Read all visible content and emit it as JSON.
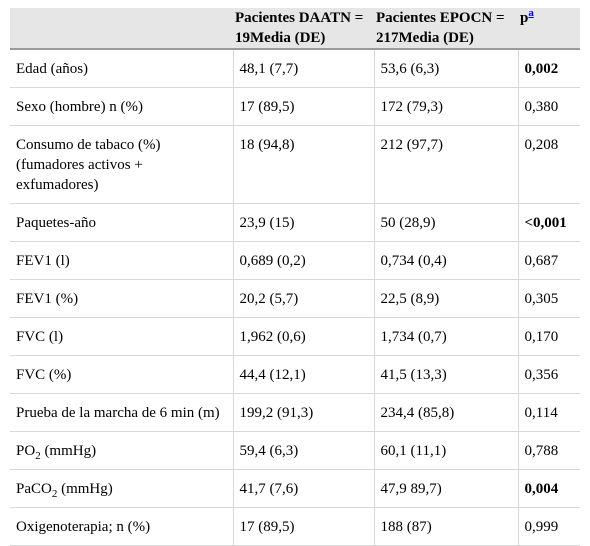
{
  "header": {
    "col0": "",
    "col1": "Pacientes DAATN = 19Media (DE)",
    "col2": "Pacientes EPOCN = 217Media (DE)",
    "col3": "p",
    "col3_sup": "a"
  },
  "rows": [
    {
      "label": "Edad (años)",
      "daatn": "48,1 (7,7)",
      "epoc": "53,6 (6,3)",
      "p": "0,002",
      "p_bold": true
    },
    {
      "label": "Sexo (hombre) n (%)",
      "daatn": "17 (89,5)",
      "epoc": "172 (79,3)",
      "p": "0,380",
      "p_bold": false
    },
    {
      "label": "Consumo de tabaco (%) (fumadores activos + exfumadores)",
      "daatn": "18 (94,8)",
      "epoc": "212 (97,7)",
      "p": "0,208",
      "p_bold": false
    },
    {
      "label": "Paquetes-año",
      "daatn": "23,9 (15)",
      "epoc": "50 (28,9)",
      "p": "<0,001",
      "p_bold": true
    },
    {
      "label": "FEV1 (l)",
      "daatn": "0,689 (0,2)",
      "epoc": "0,734 (0,4)",
      "p": "0,687",
      "p_bold": false
    },
    {
      "label": "FEV1 (%)",
      "daatn": "20,2 (5,7)",
      "epoc": "22,5 (8,9)",
      "p": "0,305",
      "p_bold": false
    },
    {
      "label": "FVC (l)",
      "daatn": "1,962 (0,6)",
      "epoc": "1,734 (0,7)",
      "p": "0,170",
      "p_bold": false
    },
    {
      "label": "FVC (%)",
      "daatn": "44,4 (12,1)",
      "epoc": "41,5 (13,3)",
      "p": "0,356",
      "p_bold": false
    },
    {
      "label": "Prueba de la marcha de 6 min (m)",
      "daatn": "199,2 (91,3)",
      "epoc": "234,4 (85,8)",
      "p": "0,114",
      "p_bold": false
    },
    {
      "label": "PO",
      "label_sub": "2",
      "label_suffix": " (mmHg)",
      "daatn": "59,4 (6,3)",
      "epoc": "60,1 (11,1)",
      "p": "0,788",
      "p_bold": false
    },
    {
      "label": "PaCO",
      "label_sub": "2",
      "label_suffix": " (mmHg)",
      "daatn": "41,7 (7,6)",
      "epoc": "47,9 89,7)",
      "p": "0,004",
      "p_bold": true
    },
    {
      "label": "Oxigenoterapia; n (%)",
      "daatn": "17 (89,5)",
      "epoc": "188 (87)",
      "p": "0,999",
      "p_bold": false
    }
  ]
}
